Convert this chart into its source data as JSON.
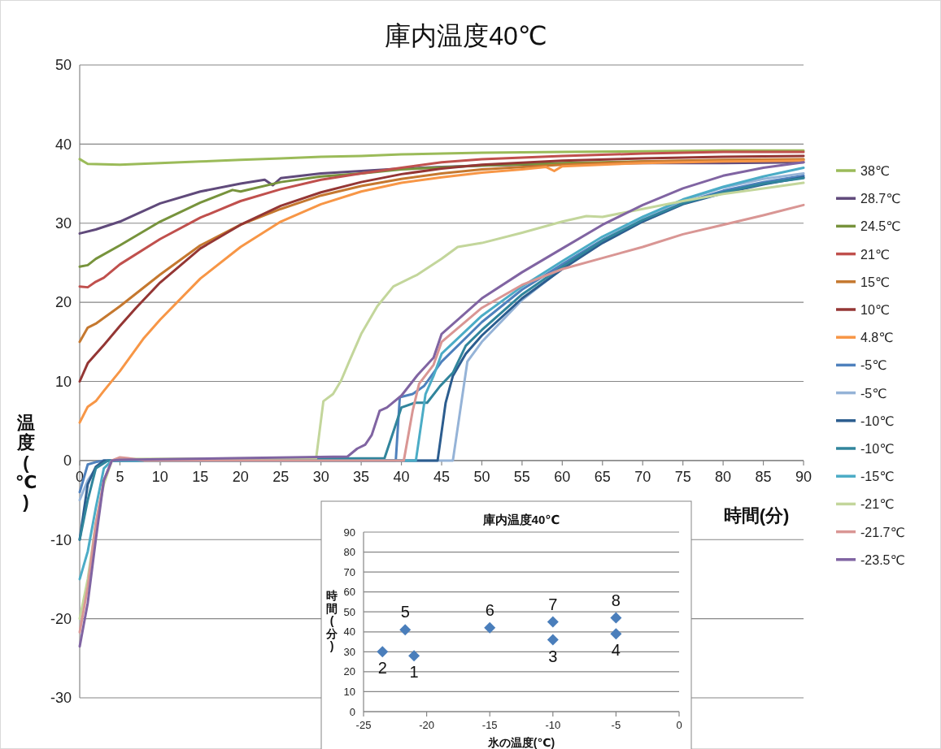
{
  "chart_data": [
    {
      "type": "line",
      "title": "庫内温度40℃",
      "xlabel": "時間(分)",
      "ylabel": "温度(℃)",
      "xlim": [
        0,
        90
      ],
      "ylim": [
        -30,
        50
      ],
      "xticks": [
        0,
        5,
        10,
        15,
        20,
        25,
        30,
        35,
        40,
        45,
        50,
        55,
        60,
        65,
        70,
        75,
        80,
        85,
        90
      ],
      "yticks": [
        -30,
        -20,
        -10,
        0,
        10,
        20,
        30,
        40,
        50
      ],
      "grid": "y",
      "legend": "right",
      "series": [
        {
          "name": "38℃",
          "color": "#9bbb59",
          "x": [
            0,
            1,
            5,
            10,
            15,
            20,
            25,
            30,
            35,
            40,
            45,
            50,
            60,
            70,
            80,
            90
          ],
          "values": [
            38.1,
            37.5,
            37.4,
            37.6,
            37.8,
            38.0,
            38.2,
            38.4,
            38.5,
            38.7,
            38.8,
            38.9,
            39.0,
            39.1,
            39.2,
            39.2
          ]
        },
        {
          "name": "28.7℃",
          "color": "#604a7b",
          "x": [
            0,
            2,
            5,
            10,
            15,
            20,
            23,
            24,
            25,
            30,
            35,
            40,
            45,
            50,
            60,
            70,
            80,
            90
          ],
          "values": [
            28.7,
            29.2,
            30.2,
            32.5,
            34.0,
            35.0,
            35.5,
            34.8,
            35.7,
            36.3,
            36.6,
            36.9,
            37.1,
            37.3,
            37.5,
            37.6,
            37.6,
            37.7
          ]
        },
        {
          "name": "24.5℃",
          "color": "#77933c",
          "x": [
            0,
            1,
            2,
            5,
            10,
            15,
            19,
            20,
            25,
            30,
            35,
            40,
            50,
            60,
            70,
            80,
            90
          ],
          "values": [
            24.5,
            24.7,
            25.5,
            27.2,
            30.2,
            32.6,
            34.2,
            34.0,
            35.2,
            35.9,
            36.3,
            36.8,
            37.3,
            37.6,
            37.8,
            37.9,
            38.0
          ]
        },
        {
          "name": "21℃",
          "color": "#c0504d",
          "x": [
            0,
            1,
            2,
            3,
            5,
            10,
            15,
            20,
            25,
            30,
            35,
            40,
            45,
            50,
            60,
            70,
            80,
            90
          ],
          "values": [
            22.0,
            21.9,
            22.6,
            23.1,
            24.8,
            28.0,
            30.7,
            32.8,
            34.3,
            35.5,
            36.3,
            37.0,
            37.7,
            38.1,
            38.5,
            38.8,
            39.0,
            39.0
          ]
        },
        {
          "name": "15℃",
          "color": "#c5782f",
          "x": [
            0,
            1,
            2,
            5,
            10,
            15,
            20,
            25,
            30,
            35,
            40,
            45,
            50,
            60,
            70,
            80,
            90
          ],
          "values": [
            15.0,
            16.8,
            17.3,
            19.5,
            23.5,
            27.2,
            29.8,
            31.8,
            33.5,
            34.7,
            35.6,
            36.3,
            36.8,
            37.4,
            37.8,
            38.0,
            38.1
          ]
        },
        {
          "name": "10℃",
          "color": "#943634",
          "x": [
            0,
            1,
            3,
            5,
            7,
            10,
            15,
            20,
            25,
            30,
            35,
            40,
            45,
            50,
            60,
            70,
            80,
            90
          ],
          "values": [
            10.0,
            12.3,
            14.6,
            17.0,
            19.3,
            22.5,
            26.8,
            29.8,
            32.2,
            33.9,
            35.2,
            36.2,
            36.9,
            37.4,
            37.9,
            38.2,
            38.4,
            38.5
          ]
        },
        {
          "name": "4.8℃",
          "color": "#f79646",
          "x": [
            0,
            1,
            2,
            3,
            5,
            8,
            10,
            15,
            20,
            25,
            30,
            35,
            40,
            45,
            50,
            55,
            58,
            59,
            60,
            70,
            80,
            90
          ],
          "values": [
            4.8,
            6.8,
            7.5,
            8.8,
            11.3,
            15.5,
            17.8,
            23.0,
            27.0,
            30.2,
            32.4,
            34.0,
            35.1,
            35.8,
            36.4,
            36.8,
            37.1,
            36.6,
            37.2,
            37.6,
            37.8,
            37.9
          ]
        },
        {
          "name": "-5℃",
          "color": "#4f81bd",
          "x": [
            0,
            1,
            2,
            3,
            39.3,
            39.8,
            41.4,
            42.8,
            45,
            50,
            55,
            60,
            65,
            70,
            75,
            80,
            85,
            90
          ],
          "values": [
            -4.0,
            -0.5,
            -0.2,
            0,
            0,
            8.0,
            8.4,
            9.4,
            12.5,
            17.5,
            21.6,
            24.8,
            27.9,
            30.5,
            32.6,
            34.1,
            35.2,
            36.0
          ]
        },
        {
          "name": "-5℃",
          "color": "#95b3d7",
          "x": [
            0,
            1,
            2,
            3,
            46.4,
            48.2,
            50,
            55,
            60,
            65,
            70,
            75,
            80,
            85,
            90
          ],
          "values": [
            -5.0,
            -2.5,
            -1.0,
            0,
            0,
            12.5,
            15.0,
            20.3,
            24.3,
            27.8,
            30.6,
            32.9,
            34.5,
            35.6,
            36.3
          ]
        },
        {
          "name": "-10℃",
          "color": "#2c5d8f",
          "x": [
            0,
            1,
            2,
            3,
            44.5,
            45.5,
            46.4,
            48,
            50,
            55,
            60,
            65,
            70,
            75,
            80,
            85,
            90
          ],
          "values": [
            -10.0,
            -3.0,
            -0.8,
            0,
            0,
            7.3,
            10.7,
            13.5,
            15.8,
            20.5,
            24.2,
            27.5,
            30.2,
            32.4,
            33.8,
            34.9,
            35.8
          ]
        },
        {
          "name": "-10℃",
          "color": "#31859c",
          "x": [
            0,
            1,
            2,
            3.5,
            37.9,
            40,
            41.7,
            43.2,
            44.8,
            46.4,
            48,
            50,
            55,
            60,
            65,
            70,
            75,
            80,
            85,
            90
          ],
          "values": [
            -10.0,
            -5.0,
            -1.0,
            0,
            0.3,
            6.7,
            7.3,
            7.3,
            9.4,
            11.1,
            14.5,
            16.5,
            21.0,
            24.5,
            27.8,
            30.4,
            32.5,
            33.9,
            35.0,
            35.7
          ]
        },
        {
          "name": "-15℃",
          "color": "#4bacc6",
          "x": [
            0,
            1,
            2,
            3,
            4,
            41.8,
            43,
            44,
            45,
            50,
            55,
            60,
            65,
            70,
            75,
            80,
            85,
            90
          ],
          "values": [
            -15.0,
            -11.5,
            -6.0,
            -1.0,
            0,
            0,
            8.4,
            10.7,
            13.5,
            18.3,
            22.0,
            25.2,
            28.3,
            30.8,
            33.0,
            34.6,
            35.9,
            37.0
          ]
        },
        {
          "name": "-21℃",
          "color": "#c3d69b",
          "x": [
            0,
            1,
            2,
            3,
            4,
            5,
            29.4,
            30.3,
            31.5,
            32.5,
            33.5,
            35,
            37,
            39,
            42,
            45,
            47,
            50,
            55,
            60,
            63,
            65,
            70,
            75,
            80,
            85,
            90
          ],
          "values": [
            -20.0,
            -15.0,
            -8.0,
            -3.0,
            0,
            0.2,
            0.3,
            7.5,
            8.4,
            10.1,
            12.5,
            16.0,
            19.5,
            22.0,
            23.5,
            25.5,
            27.0,
            27.5,
            28.8,
            30.2,
            30.9,
            30.8,
            31.8,
            32.8,
            33.7,
            34.4,
            35.1
          ]
        },
        {
          "name": "-21.7℃",
          "color": "#d99694",
          "x": [
            0,
            1,
            2,
            3,
            4,
            5,
            6,
            8,
            40.3,
            41.4,
            42.2,
            44,
            45,
            50,
            55,
            60,
            65,
            70,
            75,
            80,
            85,
            90
          ],
          "values": [
            -21.7,
            -16.0,
            -8.0,
            -2.5,
            0,
            0.4,
            0.3,
            0,
            0,
            6.3,
            9.7,
            12.1,
            15.0,
            19.3,
            22.2,
            24.2,
            25.6,
            27.0,
            28.6,
            29.8,
            31.0,
            32.3
          ]
        },
        {
          "name": "-23.5℃",
          "color": "#8064a2",
          "x": [
            0,
            1,
            2,
            3,
            4,
            5,
            33.3,
            34.5,
            35.5,
            36.3,
            37.3,
            38.2,
            40,
            42,
            44,
            45,
            50,
            55,
            60,
            65,
            70,
            75,
            80,
            85,
            90
          ],
          "values": [
            -23.5,
            -18.0,
            -10.0,
            -2.5,
            0,
            0.1,
            0.5,
            1.5,
            2.0,
            3.2,
            6.3,
            6.7,
            8.2,
            10.8,
            13.0,
            16.0,
            20.5,
            23.8,
            26.8,
            29.8,
            32.3,
            34.4,
            36.0,
            37.0,
            37.7
          ]
        }
      ]
    },
    {
      "type": "scatter",
      "title": "庫内温度40℃",
      "xlabel": "氷の温度(℃)",
      "ylabel": "時間(分)",
      "xlim": [
        -25,
        0
      ],
      "ylim": [
        0,
        90
      ],
      "xticks": [
        -25,
        -20,
        -15,
        -10,
        -5,
        0
      ],
      "yticks": [
        0,
        10,
        20,
        30,
        40,
        50,
        60,
        70,
        80,
        90
      ],
      "grid": "y",
      "marker": "diamond",
      "color": "#4a7ebb",
      "x": [
        -21,
        -23.5,
        -10,
        -5,
        -21.7,
        -15,
        -10,
        -5
      ],
      "values": [
        28,
        30,
        36,
        39,
        41,
        42,
        45,
        47
      ],
      "annotations": [
        {
          "text": "1",
          "x": -21,
          "y": 28
        },
        {
          "text": "2",
          "x": -23.5,
          "y": 30
        },
        {
          "text": "3",
          "x": -10,
          "y": 36
        },
        {
          "text": "4",
          "x": -5,
          "y": 39
        },
        {
          "text": "5",
          "x": -21.7,
          "y": 41
        },
        {
          "text": "6",
          "x": -15,
          "y": 42
        },
        {
          "text": "7",
          "x": -10,
          "y": 45
        },
        {
          "text": "8",
          "x": -5,
          "y": 47
        }
      ]
    }
  ]
}
